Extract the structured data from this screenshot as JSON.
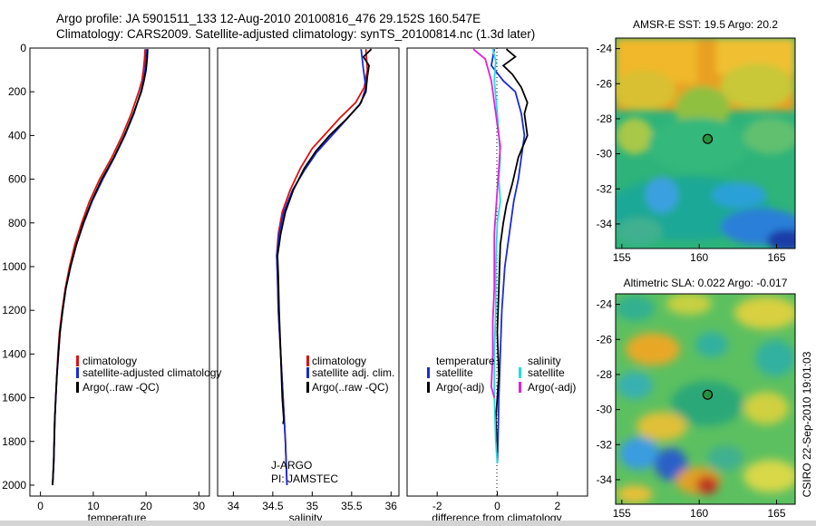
{
  "header": {
    "line1": "Argo profile: JA 5901511_133 12-Aug-2010 20100816_476 29.152S 160.547E",
    "line2": "Climatology: CARS2009. Satellite-adjusted climatology: synTS_20100814.nc (1.3d later)"
  },
  "side_label": "CSIRO 22-Sep-2010 19:01:03",
  "colors": {
    "climatology": "#dd1111",
    "satellite": "#1a2bd6",
    "argo": "#000000",
    "cyan": "#22dddd",
    "magenta": "#e020e0"
  },
  "chart_data": [
    {
      "type": "line",
      "xlabel": "temperature",
      "xlim": [
        -2,
        32
      ],
      "ylim": [
        2050,
        0
      ],
      "xticks": [
        "0",
        "10",
        "20",
        "30"
      ],
      "yticks": [
        "0",
        "200",
        "400",
        "600",
        "800",
        "1000",
        "1200",
        "1400",
        "1600",
        "1800",
        "2000"
      ],
      "legend": [
        "climatology",
        "satellite-adjusted climatology",
        "Argo(..raw -QC)"
      ],
      "series": [
        {
          "name": "climatology",
          "color": "climatology",
          "points": [
            [
              19.8,
              5
            ],
            [
              19.7,
              50
            ],
            [
              19.5,
              100
            ],
            [
              19.2,
              150
            ],
            [
              18.6,
              200
            ],
            [
              17.2,
              300
            ],
            [
              15.5,
              400
            ],
            [
              13.5,
              500
            ],
            [
              11.2,
              600
            ],
            [
              9.3,
              700
            ],
            [
              7.8,
              800
            ],
            [
              6.5,
              900
            ],
            [
              5.5,
              1000
            ],
            [
              4.7,
              1100
            ],
            [
              4.1,
              1200
            ],
            [
              3.6,
              1300
            ],
            [
              3.3,
              1400
            ],
            [
              3.1,
              1500
            ],
            [
              2.9,
              1600
            ],
            [
              2.7,
              1700
            ],
            [
              2.6,
              1800
            ],
            [
              2.5,
              1900
            ],
            [
              2.3,
              2000
            ]
          ]
        },
        {
          "name": "satellite-adjusted climatology",
          "color": "satellite",
          "points": [
            [
              20.1,
              5
            ],
            [
              20.0,
              50
            ],
            [
              19.8,
              100
            ],
            [
              19.5,
              150
            ],
            [
              19.0,
              200
            ],
            [
              17.7,
              300
            ],
            [
              16.0,
              400
            ],
            [
              14.0,
              500
            ],
            [
              11.8,
              600
            ],
            [
              9.8,
              700
            ],
            [
              8.2,
              800
            ],
            [
              6.8,
              900
            ],
            [
              5.7,
              1000
            ],
            [
              4.8,
              1100
            ],
            [
              4.2,
              1200
            ],
            [
              3.7,
              1300
            ],
            [
              3.4,
              1400
            ],
            [
              3.1,
              1500
            ],
            [
              2.9,
              1600
            ],
            [
              2.7,
              1700
            ],
            [
              2.6,
              1800
            ],
            [
              2.5,
              1900
            ],
            [
              2.3,
              2000
            ]
          ]
        },
        {
          "name": "Argo(..raw -QC)",
          "color": "argo",
          "points": [
            [
              20.3,
              5
            ],
            [
              20.2,
              50
            ],
            [
              20.0,
              100
            ],
            [
              19.6,
              150
            ],
            [
              19.1,
              200
            ],
            [
              17.6,
              300
            ],
            [
              15.9,
              400
            ],
            [
              13.9,
              500
            ],
            [
              11.6,
              600
            ],
            [
              9.7,
              700
            ],
            [
              8.1,
              800
            ],
            [
              6.8,
              900
            ],
            [
              5.7,
              1000
            ],
            [
              4.8,
              1100
            ],
            [
              4.2,
              1200
            ],
            [
              3.7,
              1300
            ],
            [
              3.4,
              1400
            ],
            [
              3.1,
              1500
            ],
            [
              2.9,
              1600
            ],
            [
              2.7,
              1700
            ],
            [
              2.6,
              1800
            ],
            [
              2.5,
              1900
            ],
            [
              2.3,
              2000
            ]
          ]
        }
      ]
    },
    {
      "type": "line",
      "xlabel": "salinity",
      "xlim": [
        33.8,
        36.1
      ],
      "ylim": [
        2050,
        0
      ],
      "xticks": [
        "34",
        "34.5",
        "35",
        "35.5",
        "36"
      ],
      "yticks": [],
      "legend": [
        "climatology",
        "satellite adj. clim.",
        "Argo(..raw -QC)"
      ],
      "annotation": [
        "J-ARGO",
        "PI: JAMSTEC"
      ],
      "series": [
        {
          "name": "climatology",
          "color": "climatology",
          "points": [
            [
              35.68,
              5
            ],
            [
              35.7,
              100
            ],
            [
              35.66,
              180
            ],
            [
              35.55,
              250
            ],
            [
              35.35,
              320
            ],
            [
              35.15,
              400
            ],
            [
              35.0,
              460
            ],
            [
              34.85,
              550
            ],
            [
              34.72,
              650
            ],
            [
              34.62,
              750
            ],
            [
              34.57,
              850
            ],
            [
              34.55,
              950
            ],
            [
              34.56,
              1050
            ],
            [
              34.57,
              1200
            ],
            [
              34.6,
              1400
            ],
            [
              34.63,
              1600
            ],
            [
              34.66,
              1800
            ],
            [
              34.68,
              2000
            ]
          ]
        },
        {
          "name": "satellite adj. clim.",
          "color": "satellite",
          "points": [
            [
              35.62,
              5
            ],
            [
              35.65,
              100
            ],
            [
              35.68,
              180
            ],
            [
              35.62,
              250
            ],
            [
              35.45,
              320
            ],
            [
              35.25,
              400
            ],
            [
              35.05,
              480
            ],
            [
              34.9,
              560
            ],
            [
              34.75,
              650
            ],
            [
              34.64,
              750
            ],
            [
              34.58,
              850
            ],
            [
              34.55,
              950
            ],
            [
              34.56,
              1050
            ],
            [
              34.57,
              1200
            ],
            [
              34.6,
              1400
            ],
            [
              34.63,
              1600
            ],
            [
              34.66,
              1800
            ],
            [
              34.68,
              2000
            ]
          ]
        },
        {
          "name": "Argo(..raw -QC)",
          "color": "argo",
          "points": [
            [
              35.75,
              5
            ],
            [
              35.65,
              40
            ],
            [
              35.72,
              80
            ],
            [
              35.7,
              130
            ],
            [
              35.68,
              200
            ],
            [
              35.6,
              260
            ],
            [
              35.42,
              330
            ],
            [
              35.22,
              400
            ],
            [
              35.05,
              470
            ],
            [
              34.9,
              550
            ],
            [
              34.76,
              650
            ],
            [
              34.66,
              750
            ],
            [
              34.6,
              850
            ],
            [
              34.56,
              950
            ],
            [
              34.57,
              1050
            ],
            [
              34.58,
              1200
            ],
            [
              34.6,
              1400
            ],
            [
              34.62,
              1600
            ],
            [
              34.64,
              1700
            ],
            [
              34.63,
              1720
            ]
          ]
        }
      ]
    },
    {
      "type": "line",
      "xlabel": "difference from climatology",
      "xlim": [
        -3,
        3
      ],
      "ylim": [
        2050,
        0
      ],
      "xticks": [
        "-2",
        "0",
        "2"
      ],
      "yticks": [],
      "legend_groups": [
        {
          "title": "temperature",
          "items": [
            "satellite",
            "Argo(-adj)"
          ]
        },
        {
          "title": "salinity",
          "items": [
            "satellite",
            "Argo(-adj)"
          ]
        }
      ],
      "series": [
        {
          "name": "satellite",
          "group": "temperature",
          "color": "satellite",
          "points": [
            [
              -0.1,
              5
            ],
            [
              -0.2,
              80
            ],
            [
              0.2,
              150
            ],
            [
              0.6,
              200
            ],
            [
              0.8,
              300
            ],
            [
              0.9,
              400
            ],
            [
              0.8,
              500
            ],
            [
              0.7,
              600
            ],
            [
              0.55,
              700
            ],
            [
              0.45,
              800
            ],
            [
              0.35,
              900
            ],
            [
              0.25,
              1000
            ],
            [
              0.15,
              1200
            ],
            [
              0.1,
              1400
            ],
            [
              0.05,
              1600
            ],
            [
              0.02,
              1800
            ],
            [
              0.0,
              1900
            ]
          ]
        },
        {
          "name": "Argo(-adj)",
          "group": "temperature",
          "color": "argo",
          "points": [
            [
              0.3,
              5
            ],
            [
              0.6,
              40
            ],
            [
              0.2,
              80
            ],
            [
              0.5,
              120
            ],
            [
              0.8,
              180
            ],
            [
              1.0,
              250
            ],
            [
              0.9,
              300
            ],
            [
              1.0,
              400
            ],
            [
              0.7,
              500
            ],
            [
              0.6,
              560
            ],
            [
              0.5,
              620
            ],
            [
              0.3,
              720
            ],
            [
              0.2,
              800
            ],
            [
              0.1,
              900
            ],
            [
              0.05,
              1100
            ],
            [
              0.0,
              1300
            ],
            [
              0.05,
              1500
            ],
            [
              -0.05,
              1700
            ],
            [
              0.0,
              1850
            ]
          ]
        },
        {
          "name": "satellite",
          "group": "salinity",
          "color": "cyan",
          "points": [
            [
              -0.15,
              5
            ],
            [
              -0.05,
              60
            ],
            [
              -0.1,
              150
            ],
            [
              0.0,
              300
            ],
            [
              0.05,
              400
            ],
            [
              0.1,
              500
            ],
            [
              0.05,
              600
            ],
            [
              0.1,
              700
            ],
            [
              0.0,
              800
            ],
            [
              -0.05,
              1000
            ],
            [
              -0.05,
              1200
            ],
            [
              -0.1,
              1400
            ],
            [
              -0.1,
              1600
            ],
            [
              -0.05,
              1800
            ],
            [
              0.0,
              1900
            ]
          ]
        },
        {
          "name": "Argo(-adj)",
          "group": "salinity",
          "color": "magenta",
          "points": [
            [
              -0.8,
              5
            ],
            [
              -0.4,
              50
            ],
            [
              -0.2,
              150
            ],
            [
              -0.1,
              250
            ],
            [
              0.0,
              350
            ],
            [
              0.1,
              450
            ],
            [
              0.05,
              550
            ],
            [
              0.0,
              650
            ],
            [
              -0.05,
              750
            ],
            [
              -0.1,
              850
            ],
            [
              -0.1,
              950
            ],
            [
              -0.1,
              1100
            ],
            [
              -0.15,
              1250
            ],
            [
              -0.15,
              1400
            ],
            [
              -0.2,
              1550
            ],
            [
              -0.1,
              1600
            ]
          ]
        }
      ]
    },
    {
      "type": "heatmap",
      "title": "AMSR-E SST: 19.5 Argo: 20.2",
      "xlim": [
        154.6,
        166.2
      ],
      "ylim": [
        -35.4,
        -23.4
      ],
      "xticks": [
        "155",
        "160",
        "165"
      ],
      "yticks": [
        "-24",
        "-26",
        "-28",
        "-30",
        "-32",
        "-34"
      ],
      "marker": {
        "lon": 160.547,
        "lat": -29.152
      }
    },
    {
      "type": "heatmap",
      "title": "Altimetric SLA: 0.022 Argo: -0.017",
      "xlim": [
        154.6,
        166.2
      ],
      "ylim": [
        -35.4,
        -23.4
      ],
      "xticks": [
        "155",
        "160",
        "165"
      ],
      "yticks": [
        "-24",
        "-26",
        "-28",
        "-30",
        "-32",
        "-34"
      ],
      "marker": {
        "lon": 160.547,
        "lat": -29.152
      }
    }
  ]
}
